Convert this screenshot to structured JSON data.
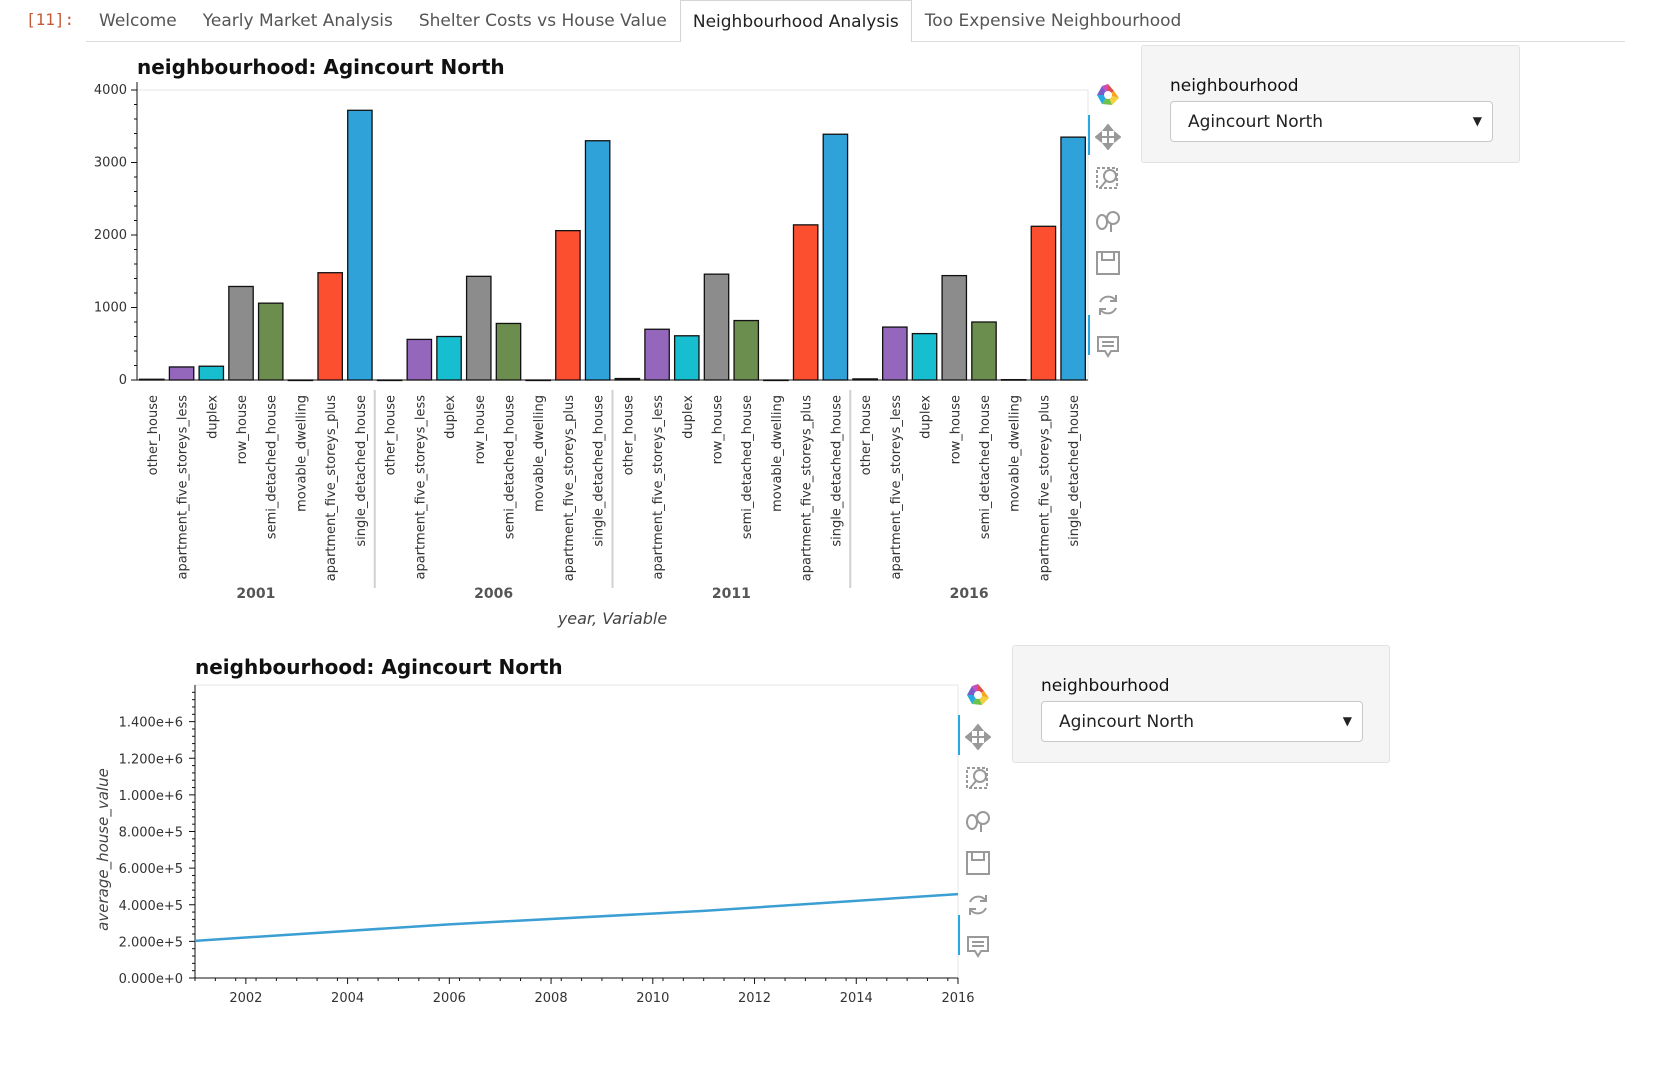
{
  "cell": {
    "prompt": "[11]:"
  },
  "tabs": [
    {
      "label": "Welcome",
      "active": false
    },
    {
      "label": "Yearly Market Analysis",
      "active": false
    },
    {
      "label": "Shelter Costs vs House Value",
      "active": false
    },
    {
      "label": "Neighbourhood Analysis",
      "active": true
    },
    {
      "label": "Too Expensive Neighbourhood",
      "active": false
    }
  ],
  "widgets": [
    {
      "label": "neighbourhood",
      "selected": "Agincourt North"
    },
    {
      "label": "neighbourhood",
      "selected": "Agincourt North"
    }
  ],
  "toolbar_icons": [
    "bokeh-logo-icon",
    "pan-icon",
    "box-zoom-icon",
    "wheel-zoom-icon",
    "save-icon",
    "reset-icon",
    "hover-icon"
  ],
  "colors": {
    "other_house": "#333333",
    "apartment_five_storeys_less": "#9467bd",
    "duplex": "#17becf",
    "row_house": "#8c8c8c",
    "semi_detached_house": "#6b8e4e",
    "movable_dwelling": "#333333",
    "apartment_five_storeys_plus": "#fc4f30",
    "single_detached_house": "#30a2da",
    "line": "#3b9fd4"
  },
  "chart_data": [
    {
      "type": "bar",
      "title": "neighbourhood: Agincourt North",
      "xlabel": "year, Variable",
      "ylabel": "",
      "ylim": [
        0,
        4000
      ],
      "yticks": [
        "0",
        "1000",
        "2000",
        "3000",
        "4000"
      ],
      "groups": [
        "2001",
        "2006",
        "2011",
        "2016"
      ],
      "categories": [
        "other_house",
        "apartment_five_storeys_less",
        "duplex",
        "row_house",
        "semi_detached_house",
        "movable_dwelling",
        "apartment_five_storeys_plus",
        "single_detached_house"
      ],
      "values": [
        [
          10,
          180,
          190,
          1290,
          1060,
          0,
          1480,
          3720
        ],
        [
          0,
          560,
          600,
          1430,
          780,
          0,
          2060,
          3300
        ],
        [
          20,
          700,
          610,
          1460,
          820,
          0,
          2140,
          3390
        ],
        [
          15,
          730,
          640,
          1440,
          800,
          5,
          2120,
          3350
        ]
      ]
    },
    {
      "type": "line",
      "title": "neighbourhood: Agincourt North",
      "xlabel": "",
      "ylabel": "average_house_value",
      "xlim": [
        2001,
        2016
      ],
      "ylim": [
        0,
        1600000
      ],
      "xticks": [
        "2002",
        "2004",
        "2006",
        "2008",
        "2010",
        "2012",
        "2014",
        "2016"
      ],
      "yticks": [
        "0.000e+0",
        "2.000e+5",
        "4.000e+5",
        "6.000e+5",
        "8.000e+5",
        "1.000e+6",
        "1.200e+6",
        "1.400e+6"
      ],
      "x": [
        2001,
        2006,
        2011,
        2016
      ],
      "y": [
        203047,
        293140,
        366667,
        458000
      ]
    }
  ]
}
